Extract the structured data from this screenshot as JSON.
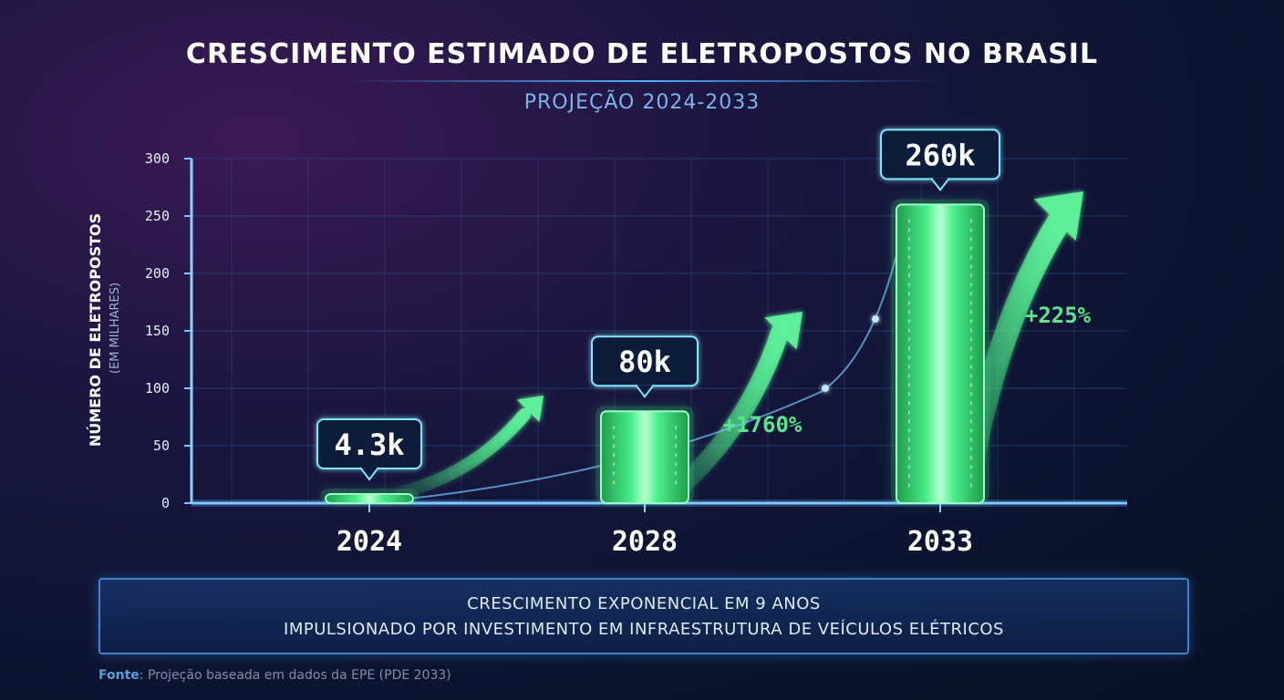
{
  "header": {
    "title": "CRESCIMENTO ESTIMADO DE ELETROPOSTOS NO BRASIL",
    "subtitle": "PROJEÇÃO 2024-2033"
  },
  "chart_data": {
    "type": "bar",
    "ylabel": "NÚMERO DE ELETROPOSTOS",
    "ylabel_unit": "(EM MILHARES)",
    "ylim": [
      0,
      300
    ],
    "yticks": [
      "0",
      "50",
      "100",
      "150",
      "200",
      "250",
      "300"
    ],
    "grid": true,
    "categories": [
      "2024",
      "2028",
      "2033"
    ],
    "values": [
      4.3,
      80,
      260
    ],
    "data_labels": [
      "4.3k",
      "80k",
      "260k"
    ],
    "growth_labels": [
      "+1760%",
      "+225%"
    ]
  },
  "info": {
    "line1": "CRESCIMENTO EXPONENCIAL EM 9 ANOS",
    "line2": "IMPULSIONADO POR INVESTIMENTO EM INFRAESTRUTURA DE VEÍCULOS ELÉTRICOS"
  },
  "source": {
    "label": "Fonte",
    "text": ": Projeção baseada em dados da EPE (PDE 2033)"
  },
  "colors": {
    "bar": "#3ee07a",
    "accent": "#4fb0ff",
    "growth": "#5ce58c"
  }
}
